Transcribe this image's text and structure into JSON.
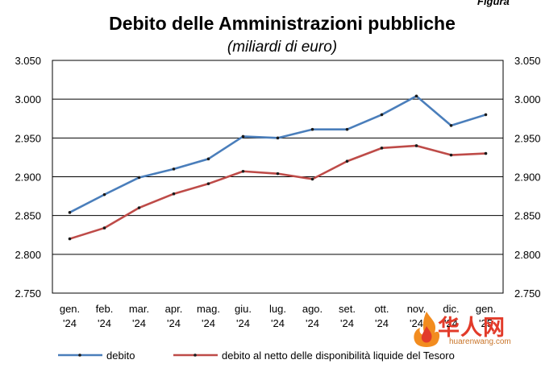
{
  "corner_label": "Figura",
  "watermark": {
    "name": "华人网",
    "url": "huarenwang.com",
    "icon": "flame-logo-icon"
  },
  "chart_data": {
    "type": "line",
    "title": "Debito delle Amministrazioni pubbliche",
    "subtitle": "(miliardi di euro)",
    "categories": [
      [
        "gen.",
        "'24"
      ],
      [
        "feb.",
        "'24"
      ],
      [
        "mar.",
        "'24"
      ],
      [
        "apr.",
        "'24"
      ],
      [
        "mag.",
        "'24"
      ],
      [
        "giu.",
        "'24"
      ],
      [
        "lug.",
        "'24"
      ],
      [
        "ago.",
        "'24"
      ],
      [
        "set.",
        "'24"
      ],
      [
        "ott.",
        "'24"
      ],
      [
        "nov.",
        "'24"
      ],
      [
        "dic.",
        "'24"
      ],
      [
        "gen.",
        "'25"
      ]
    ],
    "y_ticks": [
      "2.750",
      "2.800",
      "2.850",
      "2.900",
      "2.950",
      "3.000",
      "3.050"
    ],
    "ylim": [
      2750,
      3050
    ],
    "y_step": 50,
    "grid": true,
    "legend_position": "bottom",
    "series": [
      {
        "name": "debito",
        "color": "#4a7ebb",
        "values": [
          2854,
          2877,
          2899,
          2910,
          2923,
          2952,
          2950,
          2961,
          2961,
          2980,
          3004,
          2966,
          2980
        ]
      },
      {
        "name": "debito al netto delle disponibilità liquide del Tesoro",
        "color": "#be4b48",
        "values": [
          2820,
          2834,
          2860,
          2878,
          2891,
          2907,
          2904,
          2897,
          2920,
          2937,
          2940,
          2928,
          2930
        ]
      }
    ]
  }
}
